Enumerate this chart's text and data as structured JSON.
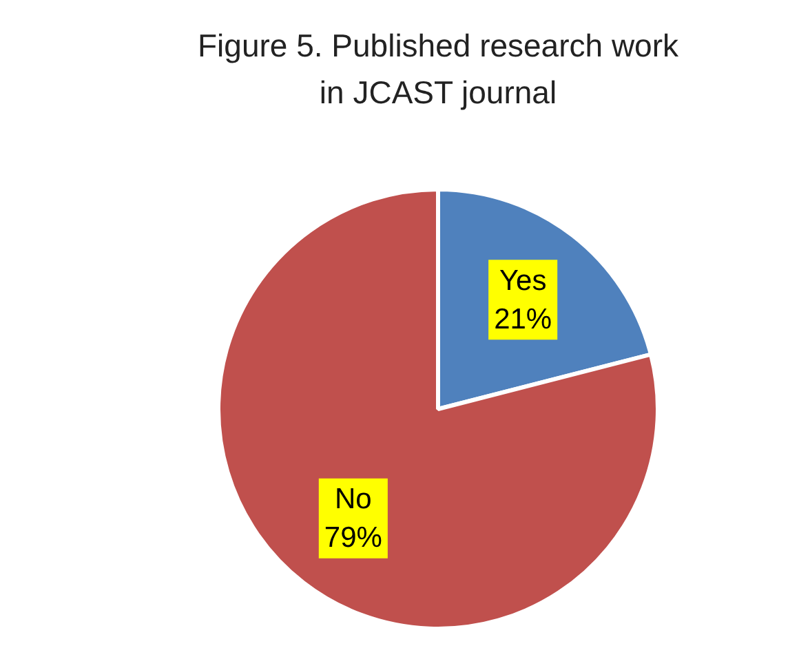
{
  "chart_data": {
    "type": "pie",
    "title": "Figure 5. Published research work in JCAST journal",
    "categories": [
      "Yes",
      "No"
    ],
    "values": [
      21,
      79
    ],
    "colors": [
      "#4f81bd",
      "#c0504d"
    ],
    "value_labels": [
      "21%",
      "79%"
    ],
    "legend": false
  }
}
